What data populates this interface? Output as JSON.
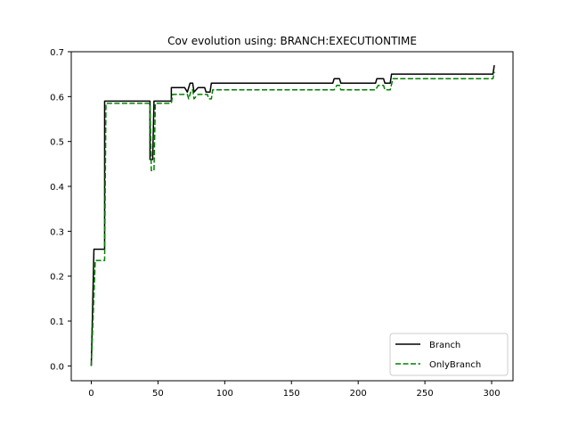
{
  "chart_data": {
    "type": "line",
    "title": "Cov evolution using: BRANCH:EXECUTIONTIME",
    "xlabel": "",
    "ylabel": "",
    "xlim": [
      -15,
      316
    ],
    "ylim": [
      -0.033,
      0.7
    ],
    "xticks": [
      0,
      50,
      100,
      150,
      200,
      250,
      300
    ],
    "yticks": [
      0.0,
      0.1,
      0.2,
      0.3,
      0.4,
      0.5,
      0.6,
      0.7
    ],
    "legend_position": "lower-right",
    "grid": false,
    "series": [
      {
        "name": "Branch",
        "color": "#000000",
        "style": "solid",
        "points": [
          [
            0,
            0.0
          ],
          [
            2,
            0.26
          ],
          [
            10,
            0.26
          ],
          [
            10,
            0.59
          ],
          [
            44,
            0.59
          ],
          [
            44,
            0.46
          ],
          [
            46,
            0.46
          ],
          [
            47,
            0.59
          ],
          [
            60,
            0.59
          ],
          [
            60,
            0.62
          ],
          [
            70,
            0.62
          ],
          [
            72,
            0.61
          ],
          [
            74,
            0.63
          ],
          [
            76,
            0.63
          ],
          [
            77,
            0.61
          ],
          [
            80,
            0.62
          ],
          [
            85,
            0.62
          ],
          [
            86,
            0.61
          ],
          [
            89,
            0.61
          ],
          [
            90,
            0.63
          ],
          [
            181,
            0.63
          ],
          [
            182,
            0.64
          ],
          [
            186,
            0.64
          ],
          [
            187,
            0.63
          ],
          [
            213,
            0.63
          ],
          [
            214,
            0.64
          ],
          [
            219,
            0.64
          ],
          [
            220,
            0.63
          ],
          [
            224,
            0.63
          ],
          [
            225,
            0.65
          ],
          [
            301,
            0.65
          ],
          [
            302,
            0.67
          ]
        ]
      },
      {
        "name": "OnlyBranch",
        "color": "#008000",
        "style": "dashed",
        "points": [
          [
            0,
            0.0
          ],
          [
            3,
            0.235
          ],
          [
            10,
            0.235
          ],
          [
            11,
            0.585
          ],
          [
            44,
            0.585
          ],
          [
            45,
            0.435
          ],
          [
            47,
            0.435
          ],
          [
            48,
            0.585
          ],
          [
            60,
            0.585
          ],
          [
            61,
            0.605
          ],
          [
            72,
            0.605
          ],
          [
            73,
            0.595
          ],
          [
            75,
            0.615
          ],
          [
            76,
            0.615
          ],
          [
            77,
            0.595
          ],
          [
            80,
            0.605
          ],
          [
            87,
            0.605
          ],
          [
            88,
            0.595
          ],
          [
            90,
            0.595
          ],
          [
            91,
            0.615
          ],
          [
            182,
            0.615
          ],
          [
            184,
            0.625
          ],
          [
            186,
            0.625
          ],
          [
            187,
            0.615
          ],
          [
            213,
            0.615
          ],
          [
            215,
            0.625
          ],
          [
            219,
            0.625
          ],
          [
            220,
            0.615
          ],
          [
            224,
            0.615
          ],
          [
            226,
            0.64
          ],
          [
            301,
            0.64
          ],
          [
            302,
            0.655
          ]
        ]
      }
    ]
  }
}
